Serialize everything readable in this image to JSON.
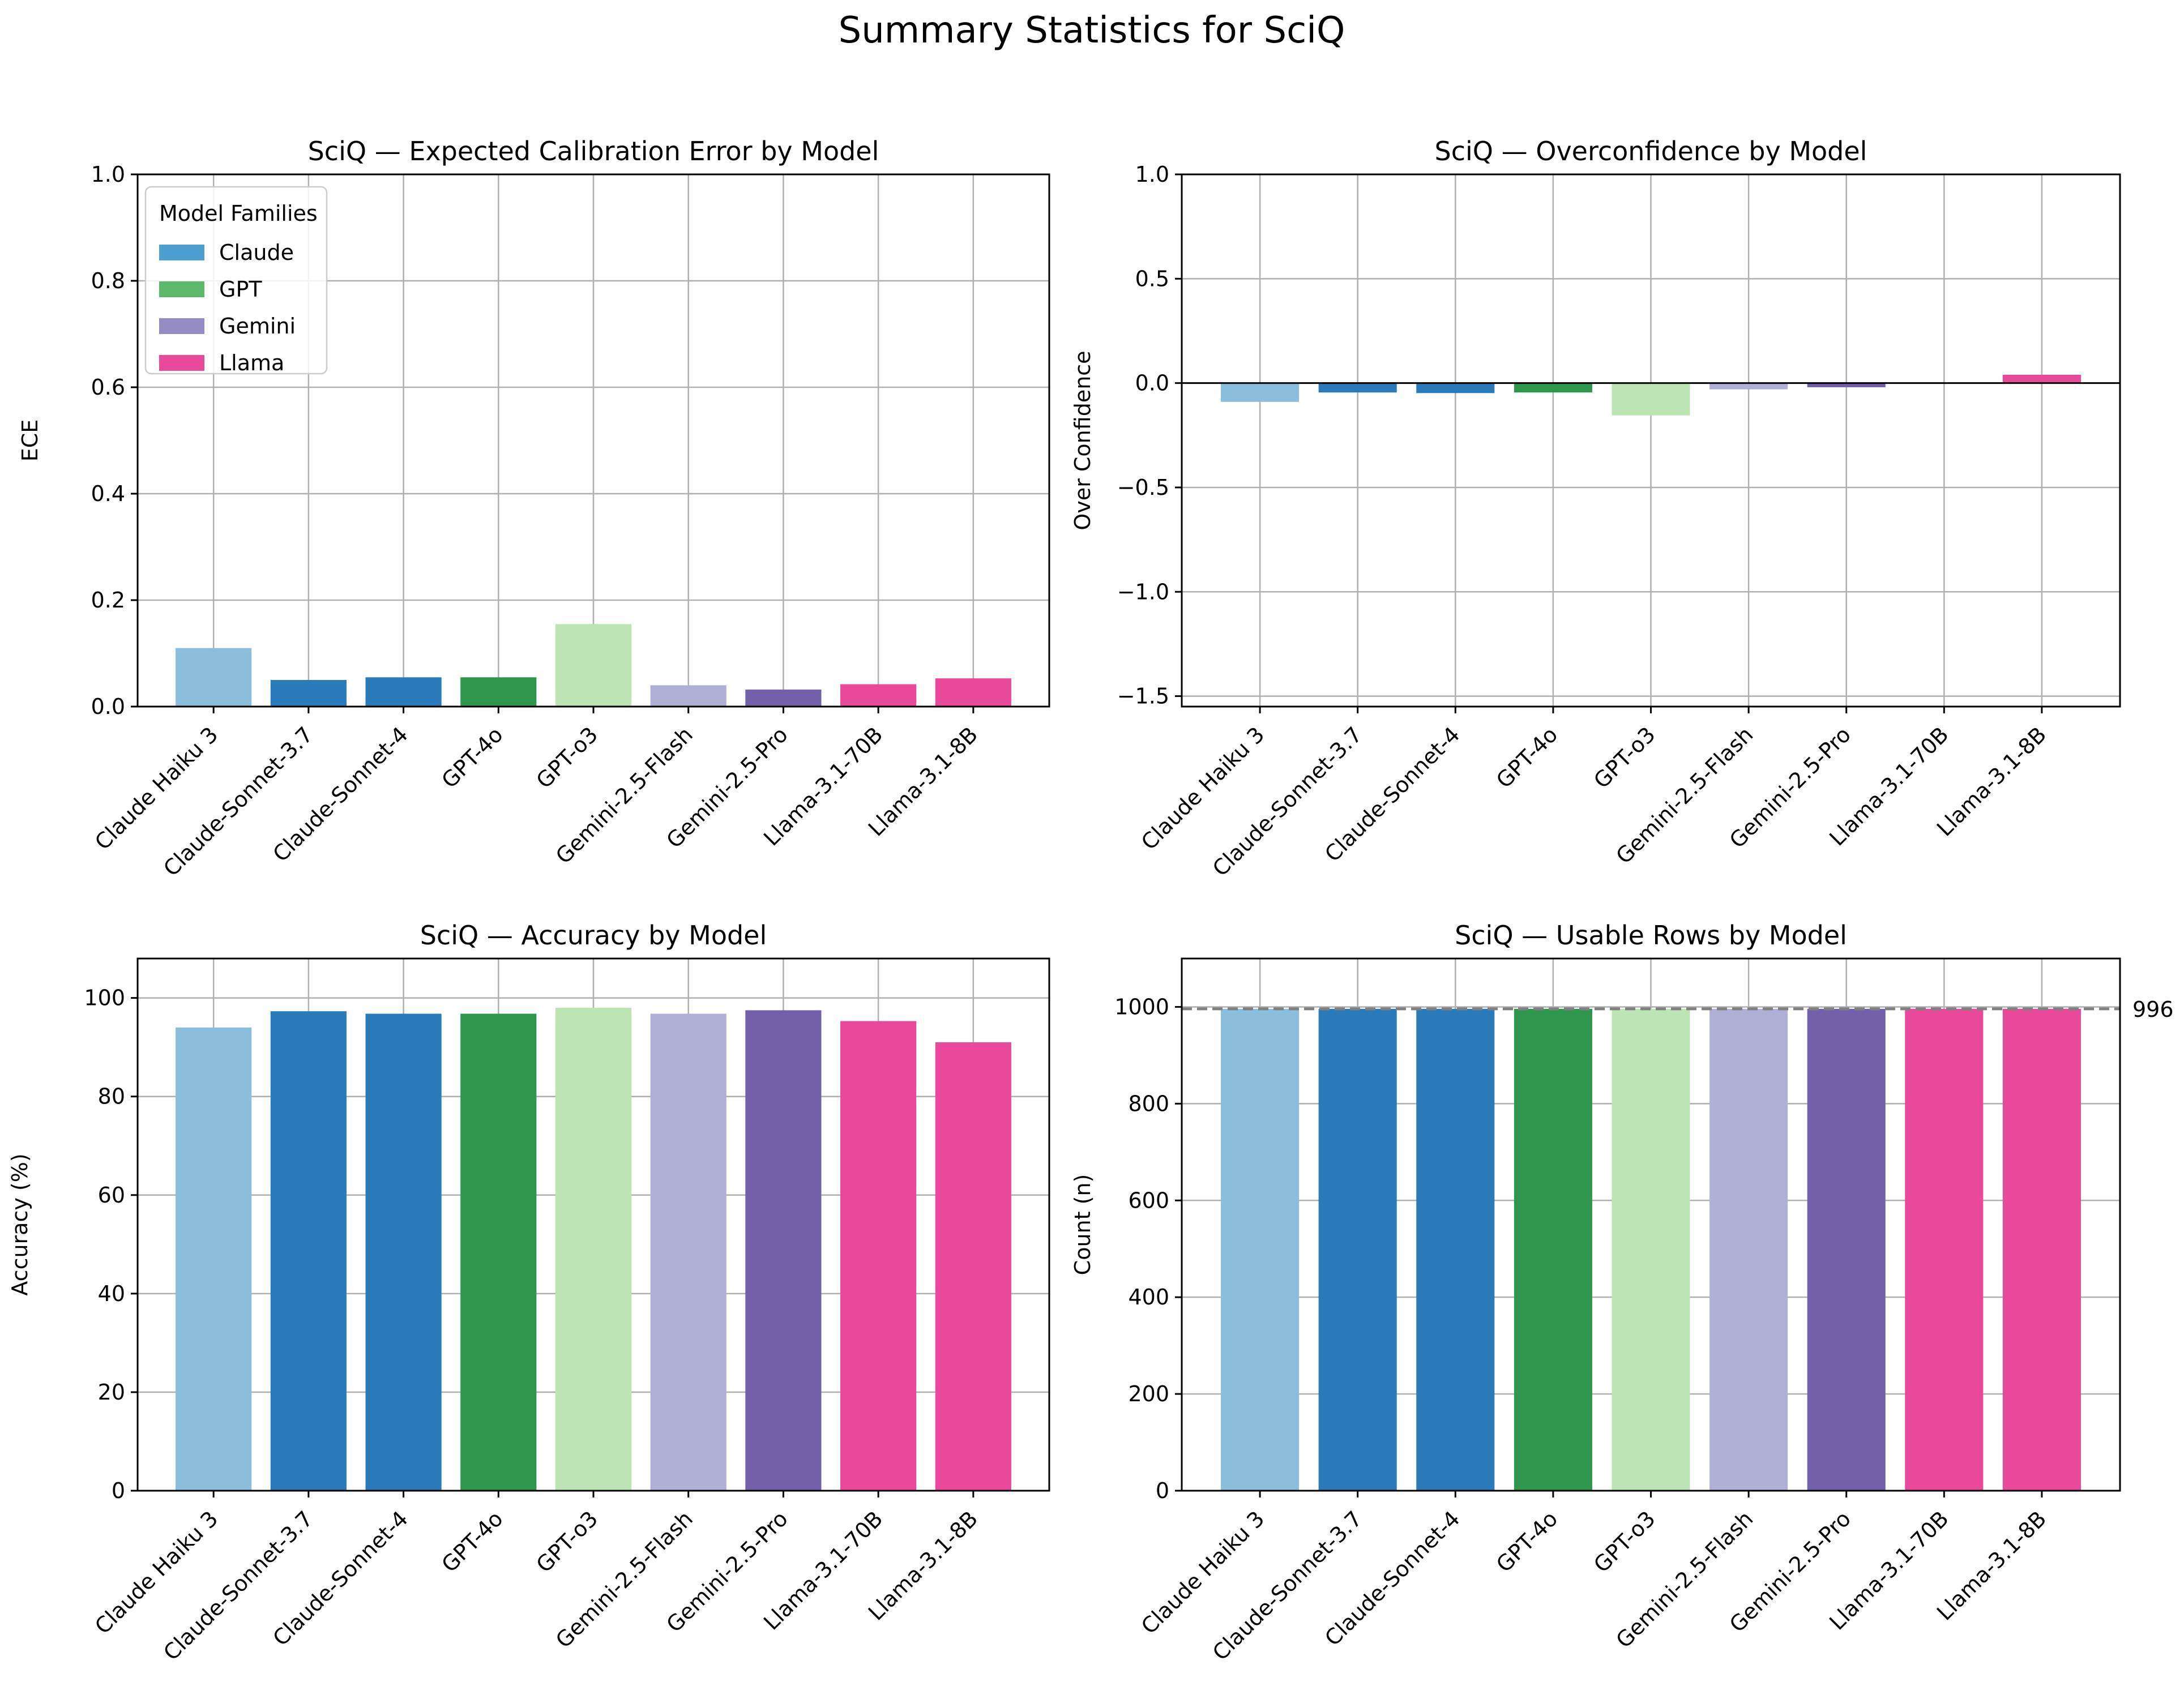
{
  "figure": {
    "title": "Summary Statistics for SciQ"
  },
  "model_colors": {
    "Claude Haiku 3": "#8abedc",
    "Claude-Sonnet-3.7": "#2b7bba",
    "Claude-Sonnet-4": "#2b7bba",
    "GPT-4o": "#2e964d",
    "GPT-o3": "#bde5b4",
    "Gemini-2.5-Flash": "#b0afd6",
    "Gemini-2.5-Pro": "#7260ab",
    "Llama-3.1-70B": "#e8499a",
    "Llama-3.1-8B": "#e8499a"
  },
  "chart_data": [
    {
      "type": "bar",
      "title": "SciQ — Expected Calibration Error by Model",
      "xlabel": "",
      "ylabel": "ECE",
      "categories": [
        "Claude Haiku 3",
        "Claude-Sonnet-3.7",
        "Claude-Sonnet-4",
        "GPT-4o",
        "GPT-o3",
        "Gemini-2.5-Flash",
        "Gemini-2.5-Pro",
        "Llama-3.1-70B",
        "Llama-3.1-8B"
      ],
      "values": [
        0.11,
        0.05,
        0.055,
        0.055,
        0.155,
        0.04,
        0.032,
        0.042,
        0.053
      ],
      "ylim": [
        0,
        1.0
      ],
      "yticks": [
        0.0,
        0.2,
        0.4,
        0.6,
        0.8,
        1.0
      ],
      "ytick_labels": [
        "0.0",
        "0.2",
        "0.4",
        "0.6",
        "0.8",
        "1.0"
      ],
      "grid": true,
      "legend": {
        "title": "Model Families",
        "placement": "upper-left",
        "entries": [
          {
            "label": "Claude",
            "color": "#4f9fd1"
          },
          {
            "label": "GPT",
            "color": "#5cb86a"
          },
          {
            "label": "Gemini",
            "color": "#938dc4"
          },
          {
            "label": "Llama",
            "color": "#e8499a"
          }
        ]
      }
    },
    {
      "type": "bar",
      "title": "SciQ — Overconfidence by Model",
      "xlabel": "",
      "ylabel": "Over Confidence",
      "categories": [
        "Claude Haiku 3",
        "Claude-Sonnet-3.7",
        "Claude-Sonnet-4",
        "GPT-4o",
        "GPT-o3",
        "Gemini-2.5-Flash",
        "Gemini-2.5-Pro",
        "Llama-3.1-70B",
        "Llama-3.1-8B"
      ],
      "values": [
        -0.09,
        -0.045,
        -0.048,
        -0.045,
        -0.155,
        -0.03,
        -0.02,
        0.0,
        0.04
      ],
      "ylim": [
        -1.55,
        1.0
      ],
      "yticks": [
        -1.5,
        -1.0,
        -0.5,
        0.0,
        0.5,
        1.0
      ],
      "ytick_labels": [
        "−1.5",
        "−1.0",
        "−0.5",
        "0.0",
        "0.5",
        "1.0"
      ],
      "zero_line": true,
      "grid": true
    },
    {
      "type": "bar",
      "title": "SciQ — Accuracy by Model",
      "xlabel": "",
      "ylabel": "Accuracy (%)",
      "categories": [
        "Claude Haiku 3",
        "Claude-Sonnet-3.7",
        "Claude-Sonnet-4",
        "GPT-4o",
        "GPT-o3",
        "Gemini-2.5-Flash",
        "Gemini-2.5-Pro",
        "Llama-3.1-70B",
        "Llama-3.1-8B"
      ],
      "values": [
        94,
        97.3,
        96.8,
        96.8,
        98,
        96.8,
        97.5,
        95.3,
        91
      ],
      "ylim": [
        0,
        108
      ],
      "yticks": [
        0,
        20,
        40,
        60,
        80,
        100
      ],
      "ytick_labels": [
        "0",
        "20",
        "40",
        "60",
        "80",
        "100"
      ],
      "grid": true
    },
    {
      "type": "bar",
      "title": "SciQ — Usable Rows by Model",
      "xlabel": "",
      "ylabel": "Count (n)",
      "categories": [
        "Claude Haiku 3",
        "Claude-Sonnet-3.7",
        "Claude-Sonnet-4",
        "GPT-4o",
        "GPT-o3",
        "Gemini-2.5-Flash",
        "Gemini-2.5-Pro",
        "Llama-3.1-70B",
        "Llama-3.1-8B"
      ],
      "values": [
        996,
        996,
        996,
        996,
        996,
        996,
        996,
        996,
        996
      ],
      "ylim": [
        0,
        1100
      ],
      "yticks": [
        0,
        200,
        400,
        600,
        800,
        1000
      ],
      "ytick_labels": [
        "0",
        "200",
        "400",
        "600",
        "800",
        "1000"
      ],
      "reference_line": {
        "value": 996,
        "label": "996"
      },
      "grid": true
    }
  ]
}
